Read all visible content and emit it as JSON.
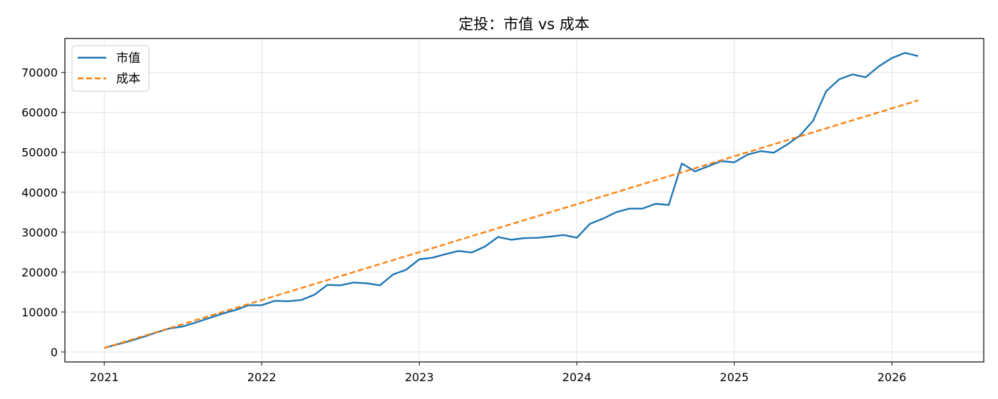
{
  "chart_data": {
    "type": "line",
    "title": "定投：市值 vs 成本",
    "xlabel": "",
    "ylabel": "",
    "x_start": "2021-01",
    "x_frequency": "monthly",
    "xlim": [
      "2020-10",
      "2026-08"
    ],
    "ylim": [
      -2500,
      78500
    ],
    "x_ticks": [
      "2021",
      "2022",
      "2023",
      "2024",
      "2025",
      "2026"
    ],
    "y_ticks": [
      0,
      10000,
      20000,
      30000,
      40000,
      50000,
      60000,
      70000
    ],
    "grid": true,
    "legend": "top-left",
    "series": [
      {
        "name": "市值",
        "color": "#1f77b4",
        "style": "solid",
        "values": [
          1000,
          1900,
          2800,
          3800,
          4900,
          5900,
          6400,
          7400,
          8500,
          9600,
          10500,
          11700,
          11700,
          12800,
          12700,
          13000,
          14300,
          16800,
          16700,
          17400,
          17200,
          16700,
          19400,
          20600,
          23200,
          23600,
          24500,
          25300,
          24900,
          26400,
          28800,
          28100,
          28500,
          28600,
          28900,
          29300,
          28600,
          32100,
          33400,
          35000,
          35900,
          35900,
          37100,
          36800,
          47200,
          45200,
          46500,
          47800,
          47500,
          49400,
          50300,
          49900,
          51900,
          54200,
          57900,
          65300,
          68300,
          69500,
          68800,
          71500,
          73600,
          74900,
          74100
        ]
      },
      {
        "name": "成本",
        "color": "#ff7f0e",
        "style": "dashed",
        "values": [
          1000,
          2000,
          3000,
          4000,
          5000,
          6000,
          7000,
          8000,
          9000,
          10000,
          11000,
          12000,
          13000,
          14000,
          15000,
          16000,
          17000,
          18000,
          19000,
          20000,
          21000,
          22000,
          23000,
          24000,
          25000,
          26000,
          27000,
          28000,
          29000,
          30000,
          31000,
          32000,
          33000,
          34000,
          35000,
          36000,
          37000,
          38000,
          39000,
          40000,
          41000,
          42000,
          43000,
          44000,
          45000,
          46000,
          47000,
          48000,
          49000,
          50000,
          51000,
          52000,
          53000,
          54000,
          55000,
          56000,
          57000,
          58000,
          59000,
          60000,
          61000,
          62000,
          63000
        ]
      }
    ]
  }
}
